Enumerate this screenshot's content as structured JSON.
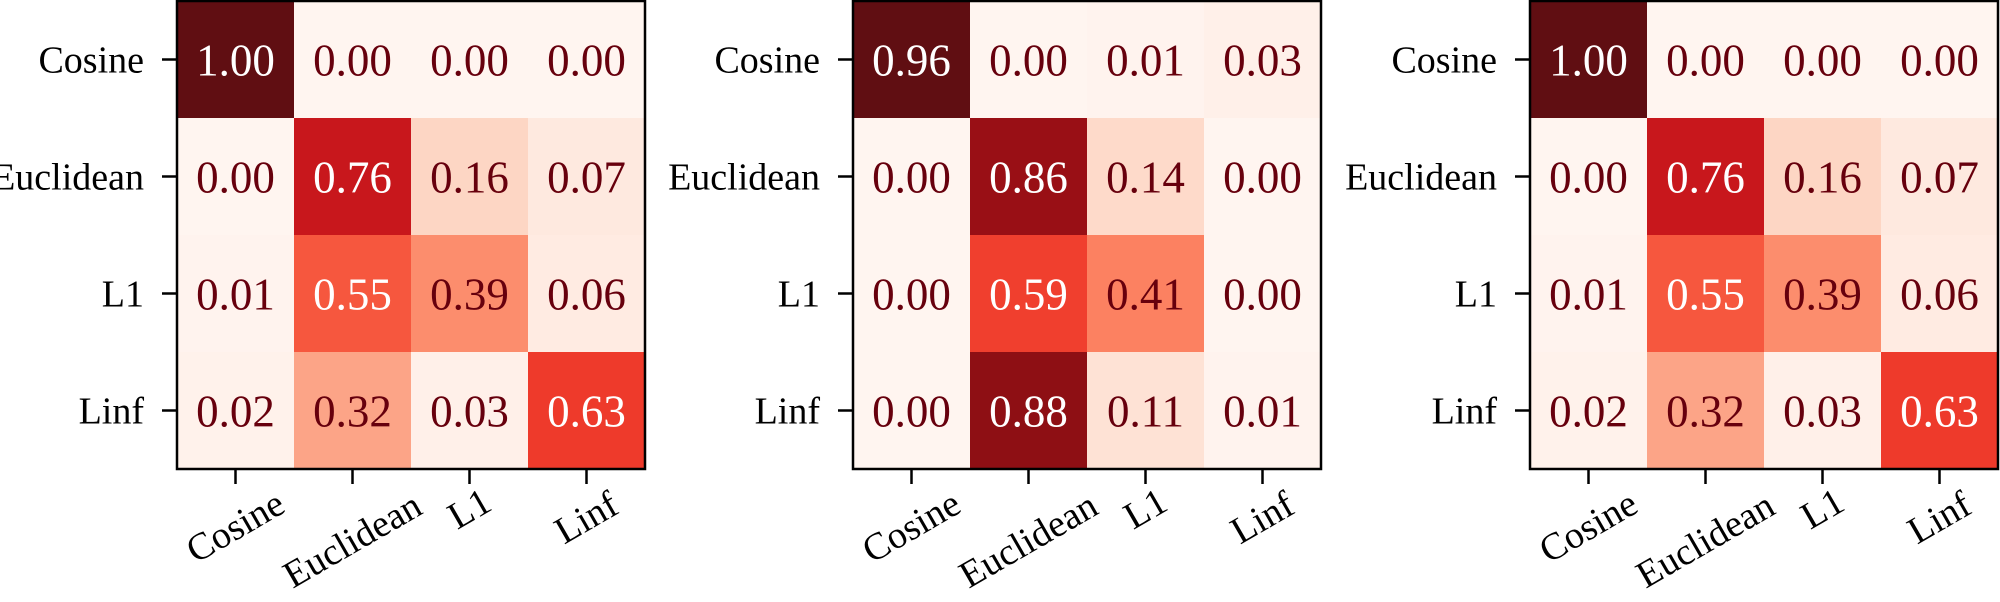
{
  "chart_data": [
    {
      "type": "heatmap",
      "title": "",
      "xlabel": "",
      "ylabel": "",
      "row_labels": [
        "Cosine",
        "Euclidean",
        "L1",
        "Linf"
      ],
      "col_labels": [
        "Cosine",
        "Euclidean",
        "L1",
        "Linf"
      ],
      "values": [
        [
          1.0,
          0.0,
          0.0,
          0.0
        ],
        [
          0.0,
          0.76,
          0.16,
          0.07
        ],
        [
          0.01,
          0.55,
          0.39,
          0.06
        ],
        [
          0.02,
          0.32,
          0.03,
          0.63
        ]
      ],
      "colormap": "Reds",
      "vmin": 0,
      "vmax": 1
    },
    {
      "type": "heatmap",
      "title": "",
      "xlabel": "",
      "ylabel": "",
      "row_labels": [
        "Cosine",
        "Euclidean",
        "L1",
        "Linf"
      ],
      "col_labels": [
        "Cosine",
        "Euclidean",
        "L1",
        "Linf"
      ],
      "values": [
        [
          0.96,
          0.0,
          0.01,
          0.03
        ],
        [
          0.0,
          0.86,
          0.14,
          0.0
        ],
        [
          0.0,
          0.59,
          0.41,
          0.0
        ],
        [
          0.0,
          0.88,
          0.11,
          0.01
        ]
      ],
      "colormap": "Reds",
      "vmin": 0,
      "vmax": 0.96
    },
    {
      "type": "heatmap",
      "title": "",
      "xlabel": "",
      "ylabel": "",
      "row_labels": [
        "Cosine",
        "Euclidean",
        "L1",
        "Linf"
      ],
      "col_labels": [
        "Cosine",
        "Euclidean",
        "L1",
        "Linf"
      ],
      "values": [
        [
          1.0,
          0.0,
          0.0,
          0.0
        ],
        [
          0.0,
          0.76,
          0.16,
          0.07
        ],
        [
          0.01,
          0.55,
          0.39,
          0.06
        ],
        [
          0.02,
          0.32,
          0.03,
          0.63
        ]
      ],
      "colormap": "Reds",
      "vmin": 0,
      "vmax": 1
    }
  ],
  "colors": {
    "dark_text": "#67000d",
    "light_text": "#ffffff",
    "axis": "#000000"
  }
}
